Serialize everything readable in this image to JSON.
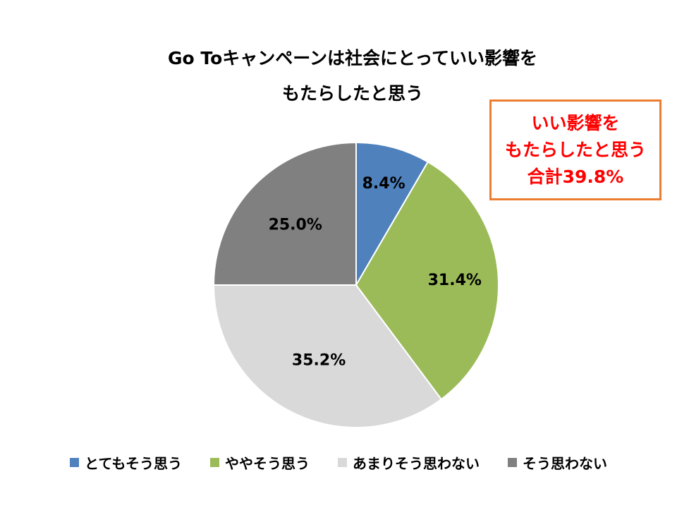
{
  "chart_data": {
    "type": "pie",
    "title_lines": [
      "Go Toキャンペーンは社会にとっていい影響を",
      "もたらしたと思う"
    ],
    "categories": [
      "とてもそう思う",
      "ややそう思う",
      "あまりそう思わない",
      "そう思わない"
    ],
    "values": [
      8.4,
      31.4,
      35.2,
      25.0
    ],
    "labels": [
      "8.4%",
      "31.4%",
      "35.2%",
      "25.0%"
    ],
    "colors": [
      "#4F81BD",
      "#9BBB59",
      "#D9D9D9",
      "#808080"
    ],
    "legend_position": "bottom"
  },
  "callout": {
    "lines": [
      "いい影響を",
      "もたらしたと思う",
      "合計39.8%"
    ],
    "border_color": "#ED7D31",
    "text_color": "#FF0000"
  }
}
